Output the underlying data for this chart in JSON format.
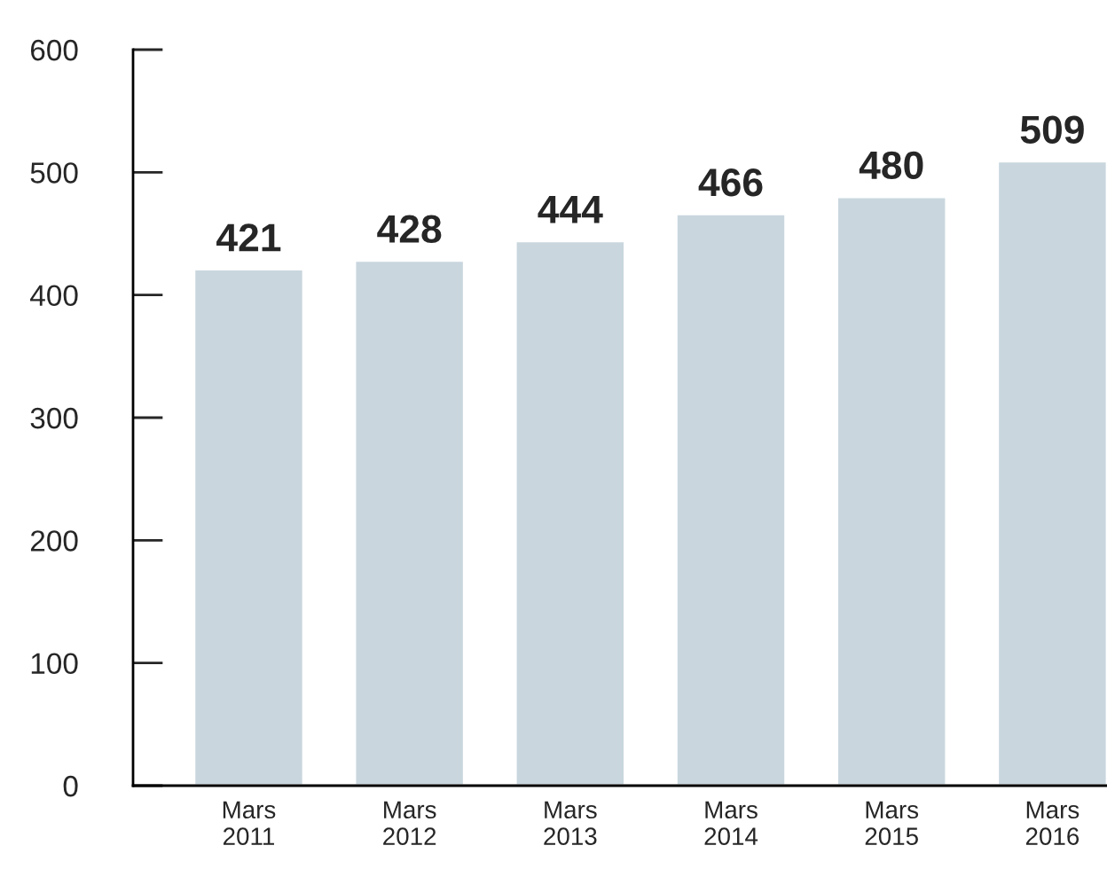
{
  "chart_data": {
    "type": "bar",
    "categories": [
      "Mars\n2011",
      "Mars\n2012",
      "Mars\n2013",
      "Mars\n2014",
      "Mars\n2015",
      "Mars\n2016"
    ],
    "values": [
      421,
      428,
      444,
      466,
      480,
      509
    ],
    "color": "#c9d6de",
    "ylim": [
      0,
      600
    ],
    "yticks": [
      0,
      100,
      200,
      300,
      400,
      500,
      600
    ],
    "data_labels": true
  }
}
